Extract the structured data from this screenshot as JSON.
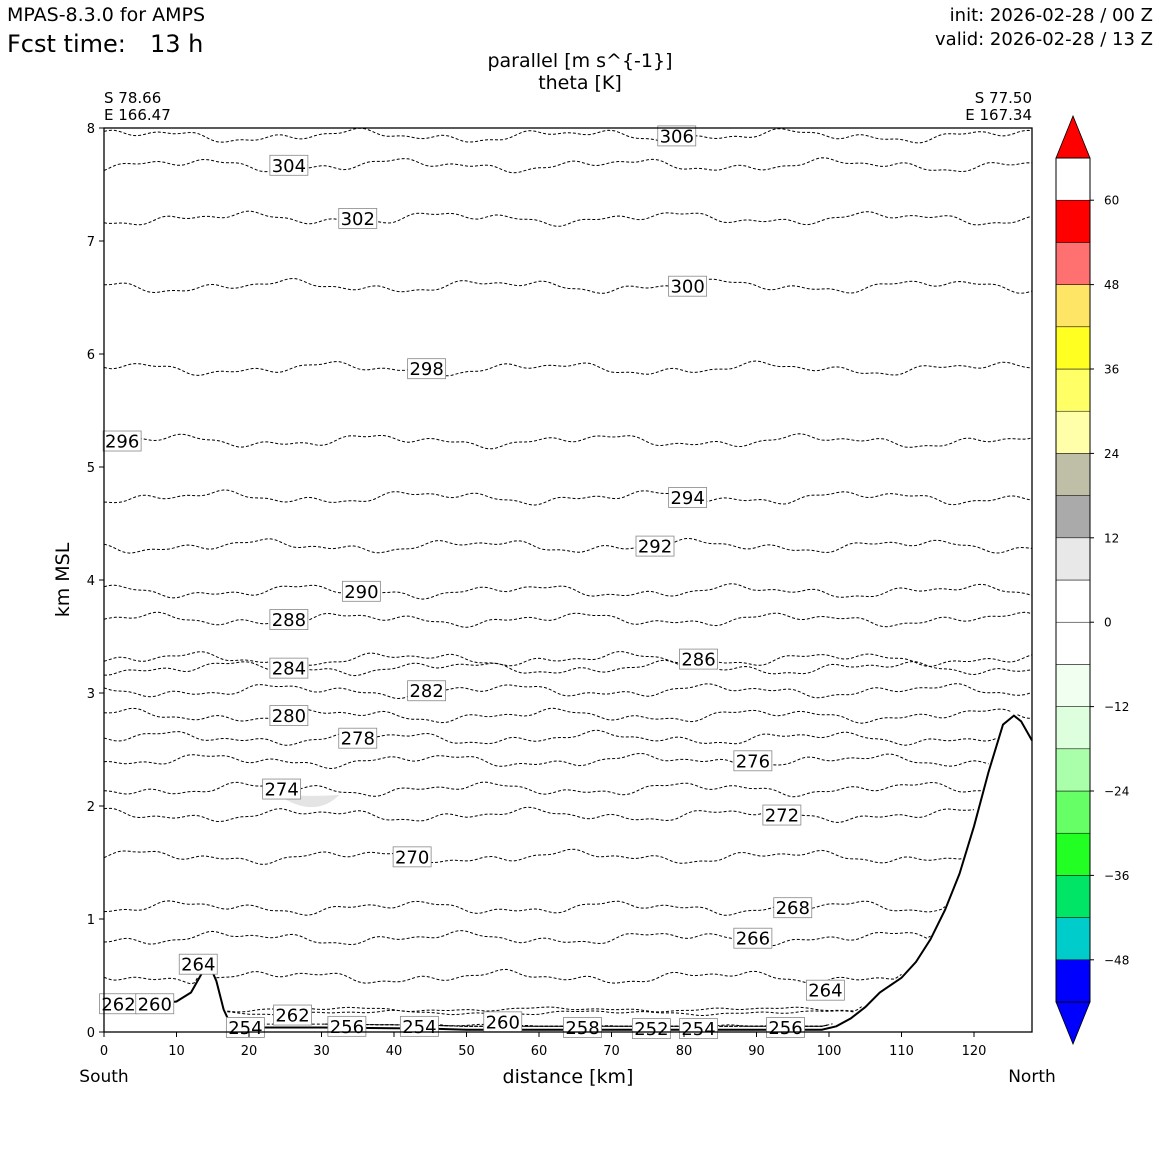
{
  "header": {
    "model": "MPAS-8.3.0 for AMPS",
    "fcst_label": "Fcst time:",
    "fcst_value": "13 h",
    "init": "init: 2026-02-28 / 00 Z",
    "valid": "valid: 2026-02-28 / 13 Z"
  },
  "chart_data": {
    "type": "cross-section",
    "title_line1": "parallel [m s^{-1}]",
    "title_line2": "theta [K]",
    "xlabel": "distance [km]",
    "ylabel": "km MSL",
    "xlim": [
      0,
      128
    ],
    "ylim": [
      0,
      8
    ],
    "xticks": [
      0,
      10,
      20,
      30,
      40,
      50,
      60,
      70,
      80,
      90,
      100,
      110,
      120
    ],
    "yticks": [
      0,
      1,
      2,
      3,
      4,
      5,
      6,
      7,
      8
    ],
    "left_end": {
      "lat": "S 78.66",
      "lon": "E 166.47",
      "direction": "South"
    },
    "right_end": {
      "lat": "S 77.50",
      "lon": "E 167.34",
      "direction": "North"
    },
    "theta_contours": [
      {
        "label": "306",
        "x": 79,
        "y": 7.93
      },
      {
        "label": "304",
        "x": 25.5,
        "y": 7.67
      },
      {
        "label": "302",
        "x": 35,
        "y": 7.2
      },
      {
        "label": "300",
        "x": 80.5,
        "y": 6.6
      },
      {
        "label": "298",
        "x": 44.5,
        "y": 5.87
      },
      {
        "label": "296",
        "x": 2.5,
        "y": 5.23
      },
      {
        "label": "294",
        "x": 80.5,
        "y": 4.73
      },
      {
        "label": "292",
        "x": 76,
        "y": 4.3
      },
      {
        "label": "290",
        "x": 35.5,
        "y": 3.9
      },
      {
        "label": "288",
        "x": 25.5,
        "y": 3.65
      },
      {
        "label": "286",
        "x": 82,
        "y": 3.3
      },
      {
        "label": "284",
        "x": 25.5,
        "y": 3.22
      },
      {
        "label": "282",
        "x": 44.5,
        "y": 3.02
      },
      {
        "label": "280",
        "x": 25.5,
        "y": 2.8
      },
      {
        "label": "278",
        "x": 35,
        "y": 2.6
      },
      {
        "label": "276",
        "x": 89.5,
        "y": 2.4
      },
      {
        "label": "274",
        "x": 24.5,
        "y": 2.15
      },
      {
        "label": "272",
        "x": 93.5,
        "y": 1.92
      },
      {
        "label": "270",
        "x": 42.5,
        "y": 1.55
      },
      {
        "label": "268",
        "x": 95,
        "y": 1.1
      },
      {
        "label": "266",
        "x": 89.5,
        "y": 0.83
      },
      {
        "label": "264",
        "x": 13,
        "y": 0.6
      },
      {
        "label": "264",
        "x": 99.5,
        "y": 0.37
      },
      {
        "label": "262",
        "x": 26,
        "y": 0.15
      },
      {
        "label": "262",
        "x": 2,
        "y": 0.25
      },
      {
        "label": "260",
        "x": 7,
        "y": 0.25
      },
      {
        "label": "260",
        "x": 55,
        "y": 0.09
      },
      {
        "label": "258",
        "x": 66,
        "y": 0.04
      },
      {
        "label": "256",
        "x": 33.5,
        "y": 0.05
      },
      {
        "label": "256",
        "x": 94,
        "y": 0.04
      },
      {
        "label": "254",
        "x": 19.5,
        "y": 0.04
      },
      {
        "label": "254",
        "x": 43.5,
        "y": 0.05
      },
      {
        "label": "254",
        "x": 82,
        "y": 0.03
      },
      {
        "label": "252",
        "x": 75.5,
        "y": 0.03
      }
    ],
    "terrain": [
      [
        0,
        0.2
      ],
      [
        5,
        0.23
      ],
      [
        10,
        0.27
      ],
      [
        12,
        0.35
      ],
      [
        13.5,
        0.52
      ],
      [
        14.5,
        0.6
      ],
      [
        15.5,
        0.45
      ],
      [
        16.5,
        0.2
      ],
      [
        17.5,
        0.06
      ],
      [
        19,
        0.04
      ],
      [
        30,
        0.04
      ],
      [
        45,
        0.03
      ],
      [
        50,
        0.02
      ],
      [
        60,
        0.02
      ],
      [
        70,
        0.02
      ],
      [
        80,
        0.02
      ],
      [
        90,
        0.02
      ],
      [
        99,
        0.02
      ],
      [
        101,
        0.05
      ],
      [
        103,
        0.12
      ],
      [
        105,
        0.22
      ],
      [
        107,
        0.35
      ],
      [
        110,
        0.48
      ],
      [
        112,
        0.62
      ],
      [
        114,
        0.82
      ],
      [
        116,
        1.08
      ],
      [
        118,
        1.4
      ],
      [
        120,
        1.82
      ],
      [
        122,
        2.3
      ],
      [
        124,
        2.72
      ],
      [
        125.5,
        2.8
      ],
      [
        126.5,
        2.75
      ],
      [
        128,
        2.58
      ]
    ],
    "colorbar": {
      "label_values": [
        "60",
        "48",
        "36",
        "24",
        "12",
        "0",
        "−12",
        "−24",
        "−36",
        "−48"
      ],
      "tick_values": [
        60,
        48,
        36,
        24,
        12,
        0,
        -12,
        -24,
        -36,
        -48
      ],
      "min": -54,
      "max": 66,
      "step": 6,
      "colors": [
        "#0000ff",
        "#00cccc",
        "#00e566",
        "#22ff22",
        "#66ff66",
        "#aaffaa",
        "#ddffdd",
        "#f0fff0",
        "#ffffff",
        "#ffffff",
        "#e8e8e8",
        "#aaaaaa",
        "#bfbfa8",
        "#ffffaa",
        "#ffff66",
        "#ffff22",
        "#ffe566",
        "#ff7070",
        "#ff0000"
      ],
      "under_color": "#0000ff",
      "over_color": "#ff0000"
    }
  }
}
